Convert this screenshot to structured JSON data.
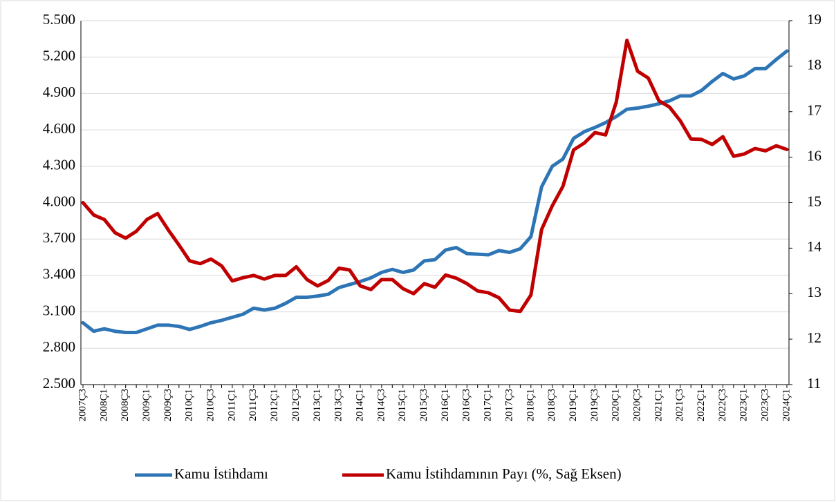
{
  "chart_data": {
    "type": "line",
    "categories": [
      "2007Ç3",
      null,
      "2008Ç1",
      null,
      "2008Ç3",
      null,
      "2009Ç1",
      null,
      "2009Ç3",
      null,
      "2010Ç1",
      null,
      "2010Ç3",
      null,
      "2011Ç1",
      null,
      "2011Ç3",
      null,
      "2012Ç1",
      null,
      "2012Ç3",
      null,
      "2013Ç1",
      null,
      "2013Ç3",
      null,
      "2014Ç1",
      null,
      "2014Ç3",
      null,
      "2015Ç1",
      null,
      "2015Ç3",
      null,
      "2016Ç1",
      null,
      "2016Ç3",
      null,
      "2017Ç1",
      null,
      "2017Ç3",
      null,
      "2018Ç1",
      null,
      "2018Ç3",
      null,
      "2019Ç1",
      null,
      "2019Ç3",
      null,
      "2020Ç1",
      null,
      "2020Ç3",
      null,
      "2021Ç1",
      null,
      "2021Ç3",
      null,
      "2022Ç1",
      null,
      "2022Ç3",
      null,
      "2023Ç1",
      null,
      "2023Ç3",
      null,
      "2024Ç1"
    ],
    "series": [
      {
        "name": "Kamu İstihdamı",
        "color": "#2e75b6",
        "axis": "y",
        "values": [
          3010,
          2940,
          2960,
          2940,
          2930,
          2930,
          2960,
          2990,
          2990,
          2980,
          2955,
          2980,
          3010,
          3030,
          3055,
          3080,
          3130,
          3115,
          3130,
          3170,
          3220,
          3220,
          3230,
          3245,
          3300,
          3325,
          3350,
          3380,
          3425,
          3450,
          3425,
          3445,
          3520,
          3530,
          3610,
          3630,
          3580,
          3575,
          3570,
          3605,
          3590,
          3620,
          3720,
          4130,
          4300,
          4360,
          4530,
          4585,
          4620,
          4660,
          4710,
          4770,
          4780,
          4795,
          4815,
          4840,
          4880,
          4880,
          4925,
          5000,
          5065,
          5020,
          5045,
          5105,
          5105,
          5180,
          5250
        ]
      },
      {
        "name": "Kamu İstihdamının Payı (%, Sağ Eksen)",
        "color": "#c00000",
        "axis": "y2",
        "values": [
          15.0,
          14.73,
          14.63,
          14.34,
          14.22,
          14.37,
          14.63,
          14.76,
          14.4,
          14.07,
          13.72,
          13.66,
          13.76,
          13.61,
          13.28,
          13.35,
          13.4,
          13.32,
          13.4,
          13.4,
          13.59,
          13.31,
          13.17,
          13.29,
          13.56,
          13.52,
          13.17,
          13.09,
          13.31,
          13.31,
          13.11,
          13.0,
          13.22,
          13.14,
          13.41,
          13.34,
          13.22,
          13.06,
          13.02,
          12.91,
          12.64,
          12.61,
          12.97,
          14.41,
          14.93,
          15.36,
          16.16,
          16.31,
          16.54,
          16.49,
          17.21,
          18.57,
          17.89,
          17.74,
          17.24,
          17.1,
          16.8,
          16.4,
          16.39,
          16.28,
          16.45,
          16.02,
          16.07,
          16.19,
          16.14,
          16.25,
          16.17
        ]
      }
    ],
    "ylim": [
      2500,
      5500
    ],
    "yticks": [
      {
        "value": 2500,
        "label": "2.500"
      },
      {
        "value": 2800,
        "label": "2.800"
      },
      {
        "value": 3100,
        "label": "3.100"
      },
      {
        "value": 3400,
        "label": "3.400"
      },
      {
        "value": 3700,
        "label": "3.700"
      },
      {
        "value": 4000,
        "label": "4.000"
      },
      {
        "value": 4300,
        "label": "4.300"
      },
      {
        "value": 4600,
        "label": "4.600"
      },
      {
        "value": 4900,
        "label": "4.900"
      },
      {
        "value": 5200,
        "label": "5.200"
      },
      {
        "value": 5500,
        "label": "5.500"
      }
    ],
    "y2lim": [
      11,
      19
    ],
    "y2ticks": [
      11,
      12,
      13,
      14,
      15,
      16,
      17,
      18,
      19
    ],
    "grid": true,
    "legend": "bottom"
  }
}
